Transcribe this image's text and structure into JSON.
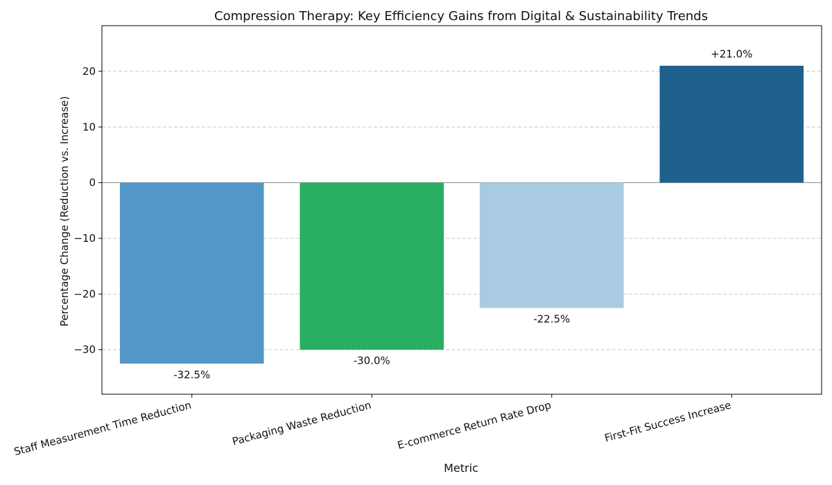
{
  "chart_data": {
    "type": "bar",
    "title": "Compression Therapy: Key Efficiency Gains from Digital & Sustainability Trends",
    "xlabel": "Metric",
    "ylabel": "Percentage Change (Reduction vs. Increase)",
    "categories": [
      "Staff Measurement Time Reduction",
      "Packaging Waste Reduction",
      "E-commerce Return Rate Drop",
      "First-Fit Success Increase"
    ],
    "values": [
      -32.5,
      -30.0,
      -22.5,
      21.0
    ],
    "data_labels": [
      "-32.5%",
      "-30.0%",
      "-22.5%",
      "+21.0%"
    ],
    "colors": [
      "#5397c8",
      "#27ae60",
      "#a9cbe2",
      "#1f618d"
    ],
    "ylim": [
      -38,
      28.2
    ],
    "yticks": [
      -30,
      -20,
      -10,
      0,
      10,
      20
    ],
    "ytick_labels": [
      "−30",
      "−20",
      "−10",
      "0",
      "10",
      "20"
    ],
    "grid": true,
    "grid_axis": "y"
  }
}
